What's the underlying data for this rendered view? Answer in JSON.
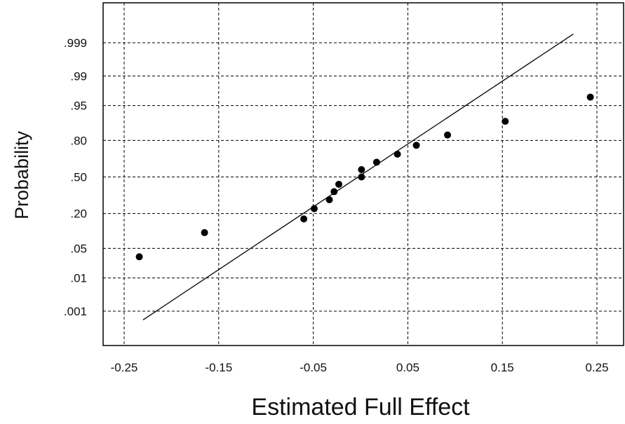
{
  "chart_data": {
    "type": "scatter",
    "title": "",
    "xlabel": "Estimated Full Effect",
    "ylabel": "Probability",
    "x_ticks": [
      -0.25,
      -0.15,
      -0.05,
      0.05,
      0.15,
      0.25
    ],
    "x_tick_labels": [
      "-0.25",
      "-0.15",
      "-0.05",
      "0.05",
      "0.15",
      "0.25"
    ],
    "y_scale": "normal-probability",
    "y_ticks": [
      0.001,
      0.01,
      0.05,
      0.2,
      0.5,
      0.8,
      0.95,
      0.99,
      0.999
    ],
    "y_tick_labels": [
      ".001",
      ".01",
      ".05",
      ".20",
      ".50",
      ".80",
      ".95",
      ".99",
      ".999"
    ],
    "xlim": [
      -0.26,
      0.26
    ],
    "grid": true,
    "legend": "none",
    "series": [
      {
        "points": [
          {
            "x": -0.234,
            "y": 0.033
          },
          {
            "x": -0.165,
            "y": 0.1
          },
          {
            "x": -0.06,
            "y": 0.167
          },
          {
            "x": -0.049,
            "y": 0.233
          },
          {
            "x": -0.033,
            "y": 0.3
          },
          {
            "x": -0.028,
            "y": 0.367
          },
          {
            "x": -0.023,
            "y": 0.433
          },
          {
            "x": 0.001,
            "y": 0.5
          },
          {
            "x": 0.001,
            "y": 0.567
          },
          {
            "x": 0.017,
            "y": 0.633
          },
          {
            "x": 0.039,
            "y": 0.7
          },
          {
            "x": 0.059,
            "y": 0.767
          },
          {
            "x": 0.092,
            "y": 0.833
          },
          {
            "x": 0.153,
            "y": 0.9
          },
          {
            "x": 0.243,
            "y": 0.967
          }
        ]
      }
    ],
    "fit_line": {
      "x": [
        -0.23,
        0.225
      ],
      "y": [
        0.0005,
        0.9995
      ]
    },
    "colors": {
      "points": "#000000",
      "line": "#000000",
      "grid": "#000000",
      "frame": "#000000"
    }
  }
}
